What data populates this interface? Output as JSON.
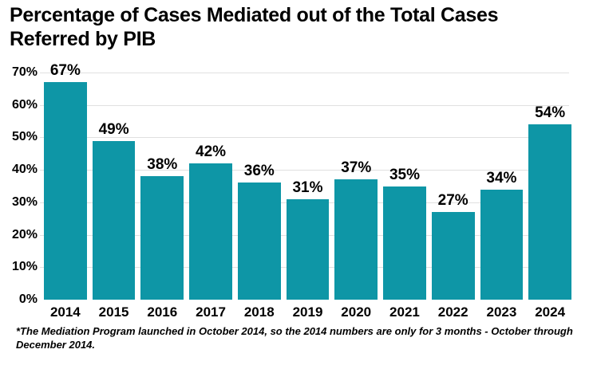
{
  "title_lines": [
    "Percentage of Cases Mediated out of the Total Cases",
    "Referred by PIB"
  ],
  "footnote": "*The Mediation Program launched in October 2014, so the 2014 numbers are only for 3 months - October through December 2014.",
  "colors": {
    "bar": "#0e96a6",
    "gridline": "#e0e0e0",
    "text": "#000000",
    "background": "#ffffff"
  },
  "chart_data": {
    "type": "bar",
    "title": "Percentage of Cases Mediated out of the Total Cases Referred by PIB",
    "categories": [
      "2014",
      "2015",
      "2016",
      "2017",
      "2018",
      "2019",
      "2020",
      "2021",
      "2022",
      "2023",
      "2024"
    ],
    "values": [
      67,
      49,
      38,
      42,
      36,
      31,
      37,
      35,
      27,
      34,
      54
    ],
    "data_labels": [
      "67%",
      "49%",
      "38%",
      "42%",
      "36%",
      "31%",
      "37%",
      "35%",
      "27%",
      "34%",
      "54%"
    ],
    "xlabel": "",
    "ylabel": "",
    "ylim": [
      0,
      70
    ],
    "ytick_step": 10,
    "ytick_labels": [
      "0%",
      "10%",
      "20%",
      "30%",
      "40%",
      "50%",
      "60%",
      "70%"
    ],
    "grid": true,
    "legend": false
  }
}
